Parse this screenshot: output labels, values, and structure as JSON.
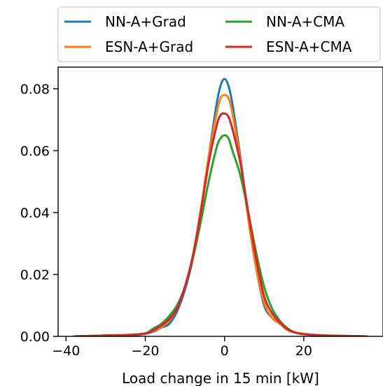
{
  "chart_data": {
    "type": "line",
    "xlabel": "Load change in 15 min [kW]",
    "ylabel": "",
    "xlim": [
      -42,
      40
    ],
    "ylim": [
      0,
      0.087
    ],
    "x_ticks": [
      -40,
      -20,
      0,
      20
    ],
    "x_tick_labels": [
      "−40",
      "−20",
      "0",
      "20"
    ],
    "y_ticks": [
      0.0,
      0.02,
      0.04,
      0.06,
      0.08
    ],
    "y_tick_labels": [
      "0.00",
      "0.02",
      "0.04",
      "0.06",
      "0.08"
    ],
    "grid": false,
    "legend_position": "top",
    "series": [
      {
        "name": "NN-A+Grad",
        "color": "#1f77b4",
        "x": [
          -38,
          -32,
          -28,
          -24,
          -20,
          -18,
          -16,
          -14,
          -12,
          -10,
          -8,
          -6,
          -4,
          -2,
          -1,
          0,
          1,
          2,
          4,
          6,
          8,
          10,
          12,
          14,
          16,
          18,
          20,
          24,
          28,
          32,
          36
        ],
        "y": [
          0.0,
          0.0002,
          0.0003,
          0.0003,
          0.0008,
          0.0015,
          0.0028,
          0.004,
          0.008,
          0.015,
          0.025,
          0.04,
          0.058,
          0.075,
          0.081,
          0.0832,
          0.081,
          0.075,
          0.058,
          0.038,
          0.022,
          0.01,
          0.006,
          0.004,
          0.002,
          0.0012,
          0.0008,
          0.0003,
          0.0002,
          0.0001,
          0.0
        ]
      },
      {
        "name": "ESN-A+Grad",
        "color": "#ff7f0e",
        "x": [
          -38,
          -32,
          -28,
          -24,
          -20,
          -18,
          -16,
          -14,
          -12,
          -10,
          -8,
          -6,
          -4,
          -2,
          -1,
          0,
          1,
          2,
          4,
          6,
          8,
          10,
          12,
          14,
          16,
          18,
          20,
          24,
          28,
          32,
          36
        ],
        "y": [
          0.0,
          0.0002,
          0.0003,
          0.0004,
          0.0009,
          0.0018,
          0.003,
          0.005,
          0.009,
          0.016,
          0.026,
          0.041,
          0.058,
          0.072,
          0.077,
          0.078,
          0.077,
          0.072,
          0.057,
          0.038,
          0.022,
          0.011,
          0.006,
          0.004,
          0.002,
          0.0012,
          0.0008,
          0.0003,
          0.0002,
          0.0001,
          0.0
        ]
      },
      {
        "name": "NN-A+CMA",
        "color": "#2ca02c",
        "x": [
          -38,
          -32,
          -28,
          -24,
          -20,
          -18,
          -16,
          -14,
          -12,
          -10,
          -8,
          -6,
          -4,
          -2,
          -1,
          0,
          1,
          2,
          4,
          6,
          8,
          10,
          12,
          14,
          16,
          18,
          20,
          24,
          28,
          32,
          36
        ],
        "y": [
          0.0,
          0.0002,
          0.0004,
          0.0005,
          0.001,
          0.0025,
          0.004,
          0.0065,
          0.01,
          0.016,
          0.025,
          0.037,
          0.05,
          0.061,
          0.064,
          0.065,
          0.064,
          0.06,
          0.052,
          0.04,
          0.027,
          0.016,
          0.009,
          0.005,
          0.0025,
          0.0012,
          0.0007,
          0.0004,
          0.0002,
          0.0001,
          0.0
        ]
      },
      {
        "name": "ESN-A+CMA",
        "color": "#d62728",
        "x": [
          -38,
          -32,
          -28,
          -24,
          -20,
          -18,
          -16,
          -14,
          -12,
          -10,
          -8,
          -6,
          -4,
          -2,
          -1,
          0,
          1,
          2,
          4,
          6,
          8,
          10,
          12,
          14,
          16,
          18,
          20,
          24,
          28,
          32,
          36
        ],
        "y": [
          0.0,
          0.0002,
          0.0003,
          0.0004,
          0.0009,
          0.002,
          0.0035,
          0.0055,
          0.009,
          0.016,
          0.026,
          0.04,
          0.056,
          0.068,
          0.0715,
          0.072,
          0.071,
          0.067,
          0.056,
          0.04,
          0.025,
          0.013,
          0.0075,
          0.0045,
          0.0022,
          0.0012,
          0.0007,
          0.0003,
          0.0002,
          0.0001,
          0.0
        ]
      }
    ]
  }
}
